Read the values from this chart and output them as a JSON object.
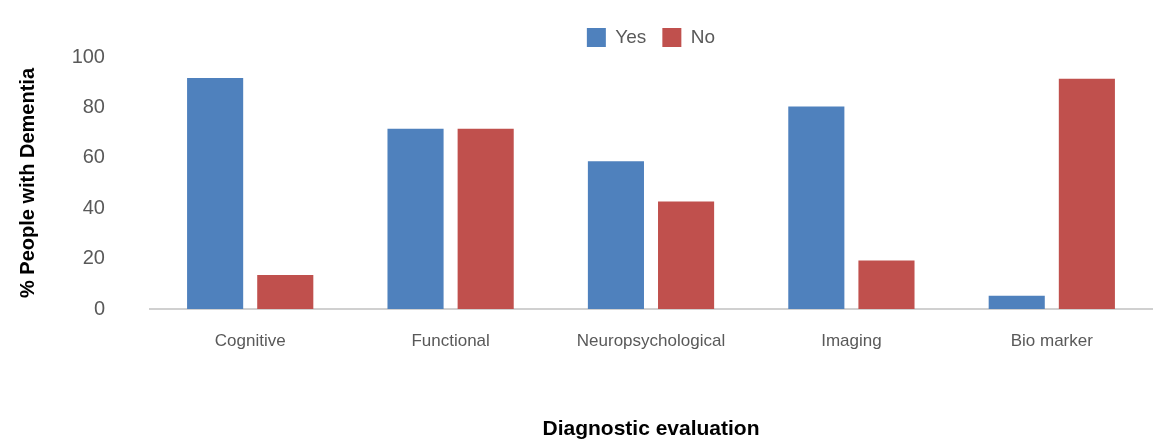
{
  "chart_data": {
    "type": "bar",
    "xlabel": "Diagnostic evaluation",
    "ylabel": "% People with Dementia",
    "categories": [
      "Cognitive",
      "Functional",
      "Neuropsychological",
      "Imaging",
      "Bio marker"
    ],
    "series": [
      {
        "name": "Yes",
        "color": "#4f81bd",
        "values": [
          91.7,
          71.5,
          58.6,
          80.4,
          5.3
        ]
      },
      {
        "name": "No",
        "color": "#c0504d",
        "values": [
          13.5,
          71.5,
          42.7,
          19.2,
          91.4
        ]
      }
    ],
    "ylim": [
      0,
      100
    ],
    "yticks": [
      0,
      20,
      40,
      60,
      80,
      100
    ],
    "legend": "top",
    "grid": false
  }
}
